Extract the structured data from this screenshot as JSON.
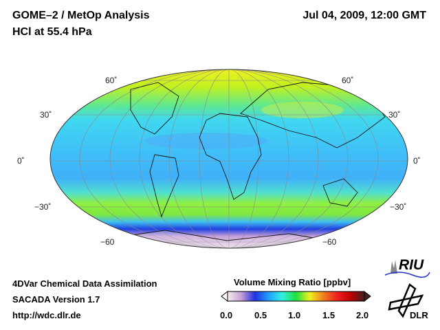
{
  "header": {
    "title_line1": "GOME–2 / MetOp Analysis",
    "title_line2": "HCl at 55.4 hPa",
    "datetime": "Jul 04, 2009, 12:00 GMT"
  },
  "map": {
    "projection": "Mollweide",
    "lat_labels_left": [
      "60˚",
      "30˚",
      "0˚",
      "−30˚",
      "−60"
    ],
    "lat_labels_right": [
      "60˚",
      "30˚",
      "0˚",
      "−30˚",
      "−60"
    ]
  },
  "footer": {
    "line1": "4DVar Chemical Data Assimilation",
    "line2": "SACADA Version 1.7",
    "line3": "http://wdc.dlr.de"
  },
  "colorbar": {
    "title": "Volume Mixing Ratio [ppbv]",
    "ticks": [
      "0.0",
      "0.5",
      "1.0",
      "1.5",
      "2.0"
    ],
    "range": [
      0.0,
      2.0
    ],
    "colors": [
      "#f4eef0",
      "#c8a0d8",
      "#2030e0",
      "#20a0ff",
      "#30f0e0",
      "#20e040",
      "#f0f020",
      "#f08020",
      "#f02020",
      "#c00000",
      "#402020"
    ]
  },
  "logos": {
    "riu": "RIU",
    "dlr": "DLR"
  }
}
